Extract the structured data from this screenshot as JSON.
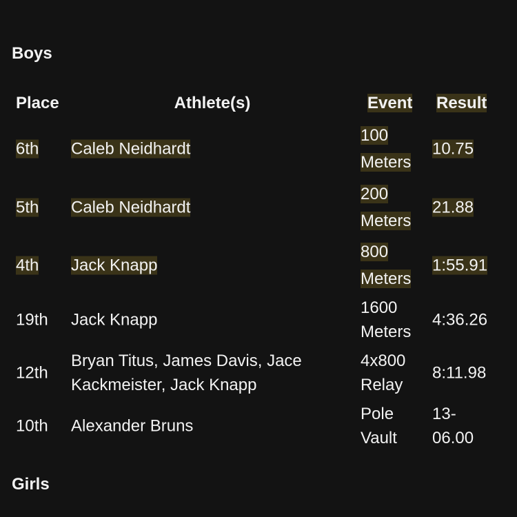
{
  "sections": [
    {
      "title": "Boys"
    },
    {
      "title": "Girls"
    }
  ],
  "table": {
    "headers": [
      "Place",
      "Athlete(s)",
      "Event",
      "Result"
    ],
    "rows": [
      [
        "6th",
        "Caleb Neidhardt",
        "100 Meters",
        "10.75"
      ],
      [
        "5th",
        "Caleb Neidhardt",
        "200 Meters",
        "21.88"
      ],
      [
        "4th",
        "Jack Knapp",
        "800 Meters",
        "1:55.91"
      ],
      [
        "19th",
        "Jack Knapp",
        "1600 Meters",
        "4:36.26"
      ],
      [
        "12th",
        "Bryan Titus, James Davis, Jace Kackmeister, Jack Knapp",
        "4x800 Relay",
        "8:11.98"
      ],
      [
        "10th",
        "Alexander Bruns",
        "Pole Vault",
        "13-06.00"
      ]
    ]
  }
}
